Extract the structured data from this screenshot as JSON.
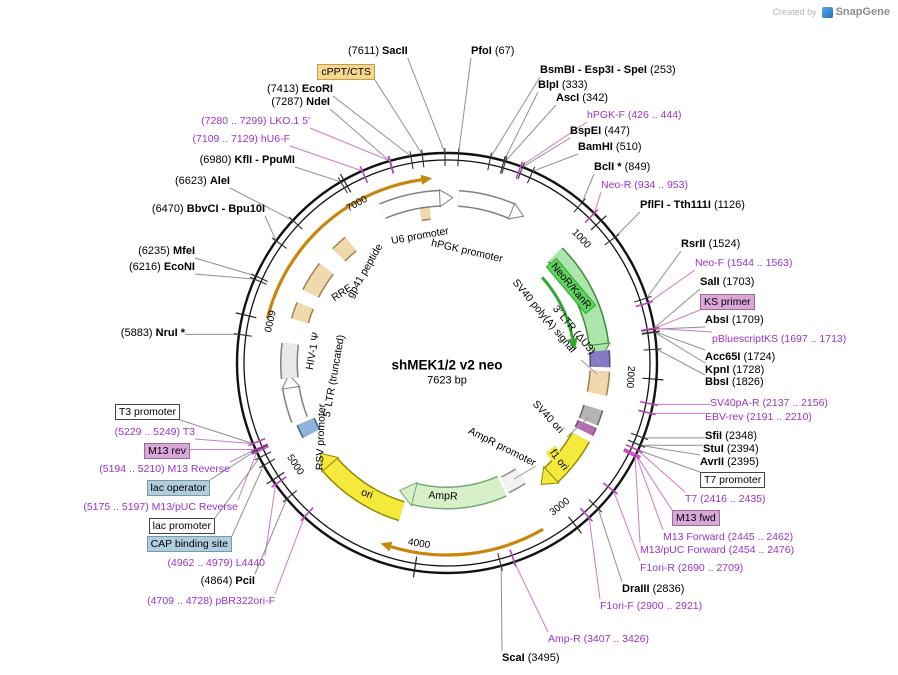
{
  "credit": {
    "created_by": "Created by",
    "brand": "SnapGene"
  },
  "plasmid": {
    "name": "shMEK1/2 v2 neo",
    "size": "7623 bp"
  },
  "ring_marks": [
    "1000",
    "2000",
    "3000",
    "4000",
    "5000",
    "6000",
    "7000"
  ],
  "colors": {
    "primer_text": "#9933CC",
    "primer_line": "#CC7ACC",
    "enzyme_line": "#909090",
    "orange_arc": "#C8860A",
    "neor_fill": "#ADE6AD",
    "ampr_fill": "#D7F0C7",
    "ori_yellow": "#F5E93C",
    "tan_feature": "#F0D9AC",
    "green_label": "#5FD35F",
    "plum_box": "#D9A8D9",
    "blue_box": "#AFCEDE",
    "tan_box": "#F5D78E"
  },
  "outer_labels": [
    {
      "pre": "(7611) ",
      "name": "SacII",
      "post": "",
      "bp": 7611,
      "kind": "enzyme"
    },
    {
      "pre": "",
      "name": "PfoI",
      "post": " (67)",
      "bp": 67,
      "kind": "enzyme"
    },
    {
      "pre": "",
      "name": "BsmBI - Esp3I - SpeI",
      "post": " (253)",
      "bp": 253,
      "kind": "enzyme"
    },
    {
      "pre": "",
      "name": "BlpI",
      "post": " (333)",
      "bp": 333,
      "kind": "enzyme"
    },
    {
      "pre": "",
      "name": "AscI",
      "post": " (342)",
      "bp": 342,
      "kind": "enzyme"
    },
    {
      "pre": "hPGK-F (426 .. 444)",
      "name": "",
      "post": "",
      "bp": 435,
      "kind": "primer"
    },
    {
      "pre": "",
      "name": "BspEI",
      "post": " (447)",
      "bp": 447,
      "kind": "enzyme"
    },
    {
      "pre": "",
      "name": "BamHI",
      "post": " (510)",
      "bp": 510,
      "kind": "enzyme"
    },
    {
      "pre": "",
      "name": "BclI *",
      "post": " (849)",
      "bp": 849,
      "kind": "enzyme"
    },
    {
      "pre": "Neo-R (934 .. 953)",
      "name": "",
      "post": "",
      "bp": 943,
      "kind": "primer"
    },
    {
      "pre": "",
      "name": "PflFI - Tth111I",
      "post": " (1126)",
      "bp": 1126,
      "kind": "enzyme"
    },
    {
      "pre": "",
      "name": "RsrII",
      "post": " (1524)",
      "bp": 1524,
      "kind": "enzyme"
    },
    {
      "pre": "Neo-F (1544 .. 1563)",
      "name": "",
      "post": "",
      "bp": 1553,
      "kind": "primer"
    },
    {
      "pre": "",
      "name": "SalI",
      "post": " (1703)",
      "bp": 1703,
      "kind": "enzyme"
    },
    {
      "pre": "KS primer",
      "name": "",
      "post": "",
      "bp": 1705,
      "kind": "box-plum"
    },
    {
      "pre": "",
      "name": "AbsI",
      "post": " (1709)",
      "bp": 1709,
      "kind": "enzyme"
    },
    {
      "pre": "pBluescriptKS (1697 .. 1713)",
      "name": "",
      "post": "",
      "bp": 1705,
      "kind": "primer"
    },
    {
      "pre": "",
      "name": "Acc65I",
      "post": " (1724)",
      "bp": 1724,
      "kind": "enzyme"
    },
    {
      "pre": "",
      "name": "KpnI",
      "post": " (1728)",
      "bp": 1728,
      "kind": "enzyme"
    },
    {
      "pre": "",
      "name": "BbsI",
      "post": " (1826)",
      "bp": 1826,
      "kind": "enzyme"
    },
    {
      "pre": "SV40pA-R (2137 .. 2156)",
      "name": "",
      "post": "",
      "bp": 2146,
      "kind": "primer"
    },
    {
      "pre": "EBV-rev (2191 .. 2210)",
      "name": "",
      "post": "",
      "bp": 2200,
      "kind": "primer"
    },
    {
      "pre": "",
      "name": "SfiI",
      "post": " (2348)",
      "bp": 2348,
      "kind": "enzyme"
    },
    {
      "pre": "",
      "name": "StuI",
      "post": " (2394)",
      "bp": 2394,
      "kind": "enzyme"
    },
    {
      "pre": "",
      "name": "AvrII",
      "post": " (2395)",
      "bp": 2395,
      "kind": "enzyme"
    },
    {
      "pre": "T7 promoter",
      "name": "",
      "post": "",
      "bp": 2425,
      "kind": "box-white"
    },
    {
      "pre": "T7 (2416 .. 2435)",
      "name": "",
      "post": "",
      "bp": 2426,
      "kind": "primer"
    },
    {
      "pre": "M13 fwd",
      "name": "",
      "post": "",
      "bp": 2453,
      "kind": "box-plum"
    },
    {
      "pre": "M13 Forward (2445 .. 2462)",
      "name": "",
      "post": "",
      "bp": 2454,
      "kind": "primer"
    },
    {
      "pre": "M13/pUC Forward (2454 .. 2476)",
      "name": "",
      "post": "",
      "bp": 2465,
      "kind": "primer"
    },
    {
      "pre": "F1ori-R (2690 .. 2709)",
      "name": "",
      "post": "",
      "bp": 2700,
      "kind": "primer"
    },
    {
      "pre": "",
      "name": "DraIII",
      "post": " (2836)",
      "bp": 2836,
      "kind": "enzyme"
    },
    {
      "pre": "F1ori-F (2900 .. 2921)",
      "name": "",
      "post": "",
      "bp": 2910,
      "kind": "primer"
    },
    {
      "pre": "Amp-R (3407 .. 3426)",
      "name": "",
      "post": "",
      "bp": 3416,
      "kind": "primer"
    },
    {
      "pre": "",
      "name": "ScaI",
      "post": " (3495)",
      "bp": 3495,
      "kind": "enzyme"
    },
    {
      "pre": "cPPT/CTS",
      "name": "",
      "post": "",
      "bp": 7480,
      "kind": "box-tan"
    },
    {
      "pre": "(7413) ",
      "name": "EcoRI",
      "post": "",
      "bp": 7413,
      "kind": "enzyme"
    },
    {
      "pre": "(7287) ",
      "name": "NdeI",
      "post": "",
      "bp": 7287,
      "kind": "enzyme"
    },
    {
      "pre": "(7280 .. 7299) LKO.1 5'",
      "name": "",
      "post": "",
      "bp": 7290,
      "kind": "primer"
    },
    {
      "pre": "(7109 .. 7129) hU6-F",
      "name": "",
      "post": "",
      "bp": 7119,
      "kind": "primer"
    },
    {
      "pre": "(6980) ",
      "name": "KflI - PpuMI",
      "post": "",
      "bp": 6980,
      "kind": "enzyme"
    },
    {
      "pre": "(6623) ",
      "name": "AleI",
      "post": "",
      "bp": 6623,
      "kind": "enzyme"
    },
    {
      "pre": "(6470) ",
      "name": "BbvCI - Bpu10I",
      "post": "",
      "bp": 6470,
      "kind": "enzyme"
    },
    {
      "pre": "(6235) ",
      "name": "MfeI",
      "post": "",
      "bp": 6235,
      "kind": "enzyme"
    },
    {
      "pre": "(6216) ",
      "name": "EcoNI",
      "post": "",
      "bp": 6216,
      "kind": "enzyme"
    },
    {
      "pre": "(5883) ",
      "name": "NruI *",
      "post": "",
      "bp": 5883,
      "kind": "enzyme"
    },
    {
      "pre": "T3 promoter",
      "name": "",
      "post": "",
      "bp": 5239,
      "kind": "box-white"
    },
    {
      "pre": "(5229 .. 5249) T3",
      "name": "",
      "post": "",
      "bp": 5239,
      "kind": "primer"
    },
    {
      "pre": "M13 rev",
      "name": "",
      "post": "",
      "bp": 5202,
      "kind": "box-plum"
    },
    {
      "pre": "(5194 .. 5210) M13 Reverse",
      "name": "",
      "post": "",
      "bp": 5202,
      "kind": "primer"
    },
    {
      "pre": "lac operator",
      "name": "",
      "post": "",
      "bp": 5196,
      "kind": "box-blue"
    },
    {
      "pre": "(5175 .. 5197) M13/pUC Reverse",
      "name": "",
      "post": "",
      "bp": 5186,
      "kind": "primer"
    },
    {
      "pre": "lac promoter",
      "name": "",
      "post": "",
      "bp": 5150,
      "kind": "box-white"
    },
    {
      "pre": "CAP binding site",
      "name": "",
      "post": "",
      "bp": 5100,
      "kind": "box-blue"
    },
    {
      "pre": "(4962 .. 4979) L4440",
      "name": "",
      "post": "",
      "bp": 4970,
      "kind": "primer"
    },
    {
      "pre": "(4864) ",
      "name": "PciI",
      "post": "",
      "bp": 4864,
      "kind": "enzyme"
    },
    {
      "pre": "(4709 .. 4728) pBR322ori-F",
      "name": "",
      "post": "",
      "bp": 4718,
      "kind": "primer"
    }
  ],
  "features": [
    {
      "label": "U6 promoter"
    },
    {
      "label": "hPGK promoter"
    },
    {
      "label": "NeoR/KanR"
    },
    {
      "label": "SV40 poly(A) signal"
    },
    {
      "label": "3' LTR (ΔU3)"
    },
    {
      "label": "SV40 ori"
    },
    {
      "label": "f1 ori"
    },
    {
      "label": "AmpR promoter"
    },
    {
      "label": "AmpR"
    },
    {
      "label": "ori"
    },
    {
      "label": "RSV promoter"
    },
    {
      "label": "5' LTR (truncated)"
    },
    {
      "label": "HIV-1 Ψ"
    },
    {
      "label": "RRE"
    },
    {
      "label": "gp41 peptide"
    }
  ]
}
